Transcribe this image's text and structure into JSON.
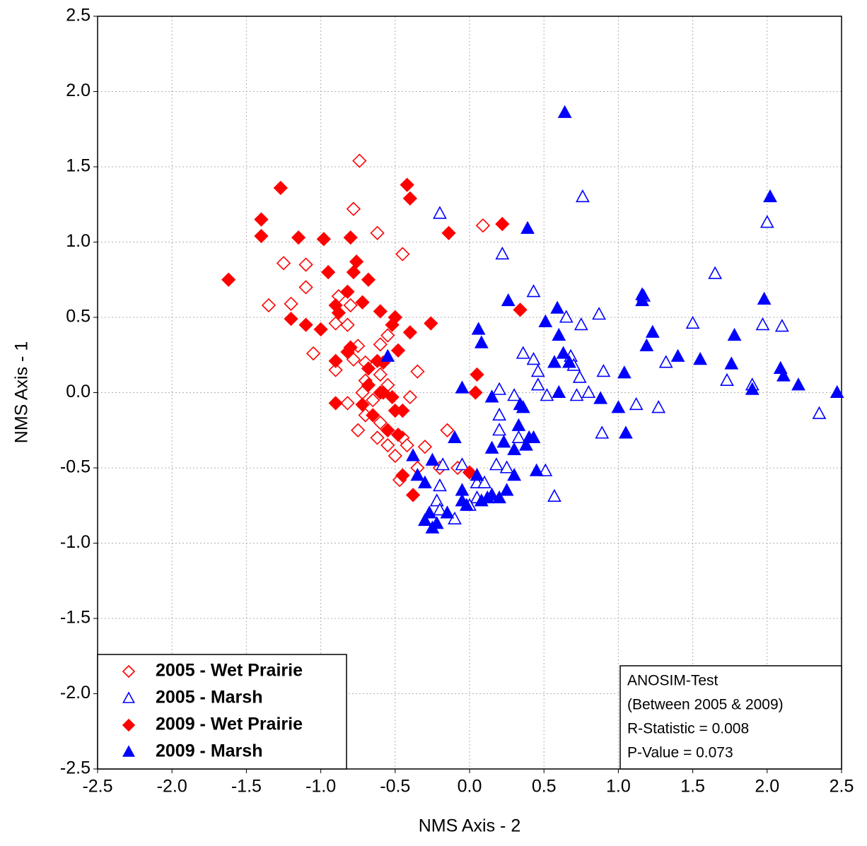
{
  "chart_data": {
    "type": "scatter",
    "x_label": "NMS Axis - 2",
    "y_label": "NMS Axis - 1",
    "xlim": [
      -2.5,
      2.5
    ],
    "ylim": [
      -2.5,
      2.5
    ],
    "xticks": [
      -2.5,
      {
        "value": -2,
        "label": "-2.0"
      },
      -1.5,
      {
        "value": -1,
        "label": "-1.0"
      },
      -0.5,
      {
        "value": 0,
        "label": "0.0"
      },
      0.5,
      {
        "value": 1,
        "label": "1.0"
      },
      1.5,
      {
        "value": 2,
        "label": "2.0"
      },
      2.5
    ],
    "yticks": [
      -2.5,
      {
        "value": -2,
        "label": "-2.0"
      },
      -1.5,
      {
        "value": -1,
        "label": "-1.0"
      },
      -0.5,
      {
        "value": 0,
        "label": "0.0"
      },
      0.5,
      {
        "value": 1,
        "label": "1.0"
      },
      1.5,
      {
        "value": 2,
        "label": "2.0"
      },
      2.5
    ],
    "grid": true,
    "legend": "lower left",
    "annotation": [
      "ANOSIM-Test",
      "(Between 2005 & 2009)",
      "R-Statistic = 0.008",
      "P-Value = 0.073"
    ],
    "series": [
      {
        "name": "2005 - Wet Prairie",
        "color": "#ff0000",
        "marker": "diamond",
        "filled": false,
        "x": [
          -0.74,
          -0.78,
          -0.62,
          -0.45,
          0.09,
          -1.25,
          -1.1,
          -1.1,
          -1.2,
          -1.35,
          -0.88,
          -0.8,
          -0.9,
          -0.82,
          -0.75,
          -1.05,
          -0.9,
          -0.7,
          -0.6,
          -0.55,
          -0.35,
          -0.5,
          -0.72,
          -0.82,
          -0.65,
          -0.55,
          -0.4,
          -0.6,
          -0.75,
          -0.62,
          -0.55,
          -0.5,
          -0.45,
          -0.42,
          -0.3,
          -0.35,
          -0.45,
          -0.2,
          -0.15,
          -0.08,
          -0.55,
          -0.7,
          -0.47,
          -0.6,
          -0.78,
          -0.7
        ],
        "values": [
          1.54,
          1.22,
          1.06,
          0.92,
          1.11,
          0.86,
          0.85,
          0.7,
          0.59,
          0.58,
          0.64,
          0.58,
          0.46,
          0.45,
          0.31,
          0.26,
          0.15,
          0.2,
          0.32,
          0.38,
          0.14,
          0.5,
          0.0,
          -0.07,
          -0.05,
          0.05,
          -0.03,
          -0.2,
          -0.25,
          -0.3,
          -0.35,
          -0.42,
          -0.3,
          -0.35,
          -0.36,
          -0.5,
          -0.55,
          -0.5,
          -0.25,
          -0.5,
          -0.25,
          -0.15,
          -0.58,
          0.12,
          0.22,
          0.08
        ]
      },
      {
        "name": "2005 - Marsh",
        "color": "#0000ff",
        "marker": "triangle",
        "filled": false,
        "x": [
          -0.2,
          0.22,
          0.76,
          2.0,
          0.43,
          0.65,
          0.75,
          0.87,
          1.17,
          1.65,
          1.5,
          1.97,
          2.1,
          0.36,
          0.43,
          0.46,
          0.46,
          0.52,
          0.68,
          0.7,
          0.74,
          0.8,
          0.72,
          0.9,
          0.89,
          1.12,
          1.27,
          1.32,
          1.73,
          1.9,
          2.35,
          0.2,
          0.3,
          0.2,
          0.2,
          0.33,
          0.18,
          0.25,
          0.05,
          0.1,
          -0.18,
          -0.2,
          -0.22,
          -0.05,
          -0.1,
          -0.2,
          0.05,
          0.51,
          0.57,
          0.0
        ],
        "values": [
          1.19,
          0.92,
          1.3,
          1.13,
          0.67,
          0.5,
          0.45,
          0.52,
          0.64,
          0.79,
          0.46,
          0.45,
          0.44,
          0.26,
          0.22,
          0.14,
          0.05,
          -0.02,
          0.24,
          0.18,
          0.1,
          0.0,
          -0.02,
          0.14,
          -0.27,
          -0.08,
          -0.1,
          0.2,
          0.08,
          0.05,
          -0.14,
          0.02,
          -0.02,
          -0.15,
          -0.25,
          -0.3,
          -0.48,
          -0.5,
          -0.6,
          -0.6,
          -0.48,
          -0.62,
          -0.72,
          -0.48,
          -0.84,
          -0.78,
          -0.7,
          -0.52,
          -0.69,
          -0.75
        ]
      },
      {
        "name": "2009 - Wet Prairie",
        "color": "#ff0000",
        "marker": "diamond",
        "filled": true,
        "x": [
          -1.62,
          -1.4,
          -1.4,
          -1.27,
          -1.15,
          -0.98,
          -0.8,
          -0.42,
          -0.4,
          -0.14,
          0.22,
          0.34,
          -1.2,
          -1.1,
          -1.0,
          -0.95,
          -0.9,
          -0.88,
          -0.78,
          -0.76,
          -0.72,
          -0.68,
          -0.6,
          -0.5,
          -0.52,
          -0.48,
          -0.4,
          -0.26,
          -0.9,
          -0.82,
          -0.8,
          -0.9,
          -0.72,
          -0.68,
          -0.62,
          -0.58,
          -0.6,
          -0.58,
          -0.52,
          -0.65,
          -0.55,
          -0.5,
          -0.45,
          -0.48,
          -0.45,
          -0.38,
          0.05,
          0.04,
          0.0,
          -0.68,
          -0.82
        ],
        "values": [
          0.75,
          1.15,
          1.04,
          1.36,
          1.03,
          1.02,
          1.03,
          1.38,
          1.29,
          1.06,
          1.12,
          0.55,
          0.49,
          0.45,
          0.42,
          0.8,
          0.58,
          0.53,
          0.8,
          0.87,
          0.6,
          0.75,
          0.54,
          0.5,
          0.45,
          0.28,
          0.4,
          0.46,
          0.21,
          0.27,
          0.3,
          -0.07,
          -0.08,
          0.05,
          0.21,
          0.2,
          0.0,
          0.0,
          -0.03,
          -0.15,
          -0.25,
          -0.12,
          -0.12,
          -0.28,
          -0.55,
          -0.68,
          0.12,
          0.0,
          -0.53,
          0.16,
          0.67
        ]
      },
      {
        "name": "2009 - Marsh",
        "color": "#0000ff",
        "marker": "triangle",
        "filled": true,
        "x": [
          0.64,
          0.39,
          2.02,
          1.16,
          1.16,
          1.98,
          0.26,
          0.59,
          0.51,
          0.6,
          0.63,
          0.57,
          0.67,
          1.19,
          1.23,
          1.4,
          1.55,
          1.78,
          1.76,
          1.04,
          2.09,
          2.11,
          2.21,
          2.47,
          1.9,
          0.06,
          0.08,
          -0.55,
          -0.05,
          0.6,
          0.88,
          1.0,
          1.05,
          0.15,
          0.34,
          0.36,
          0.33,
          0.4,
          0.43,
          0.38,
          0.3,
          0.23,
          0.15,
          -0.1,
          -0.38,
          -0.25,
          -0.3,
          -0.35,
          -0.27,
          -0.22,
          -0.25,
          -0.3,
          -0.15,
          -0.05,
          -0.05,
          0.05,
          0.12,
          0.2,
          0.25,
          0.3,
          0.45,
          0.08,
          -0.02,
          0.15
        ],
        "values": [
          1.86,
          1.09,
          1.3,
          0.65,
          0.61,
          0.62,
          0.61,
          0.56,
          0.47,
          0.38,
          0.26,
          0.2,
          0.2,
          0.31,
          0.4,
          0.24,
          0.22,
          0.38,
          0.19,
          0.13,
          0.16,
          0.11,
          0.05,
          0.0,
          0.02,
          0.42,
          0.33,
          0.24,
          0.03,
          0.0,
          -0.04,
          -0.1,
          -0.27,
          -0.03,
          -0.08,
          -0.1,
          -0.22,
          -0.3,
          -0.3,
          -0.35,
          -0.38,
          -0.33,
          -0.37,
          -0.3,
          -0.42,
          -0.45,
          -0.6,
          -0.55,
          -0.8,
          -0.87,
          -0.9,
          -0.85,
          -0.8,
          -0.72,
          -0.65,
          -0.55,
          -0.7,
          -0.7,
          -0.65,
          -0.55,
          -0.52,
          -0.72,
          -0.75,
          -0.68
        ]
      }
    ]
  }
}
